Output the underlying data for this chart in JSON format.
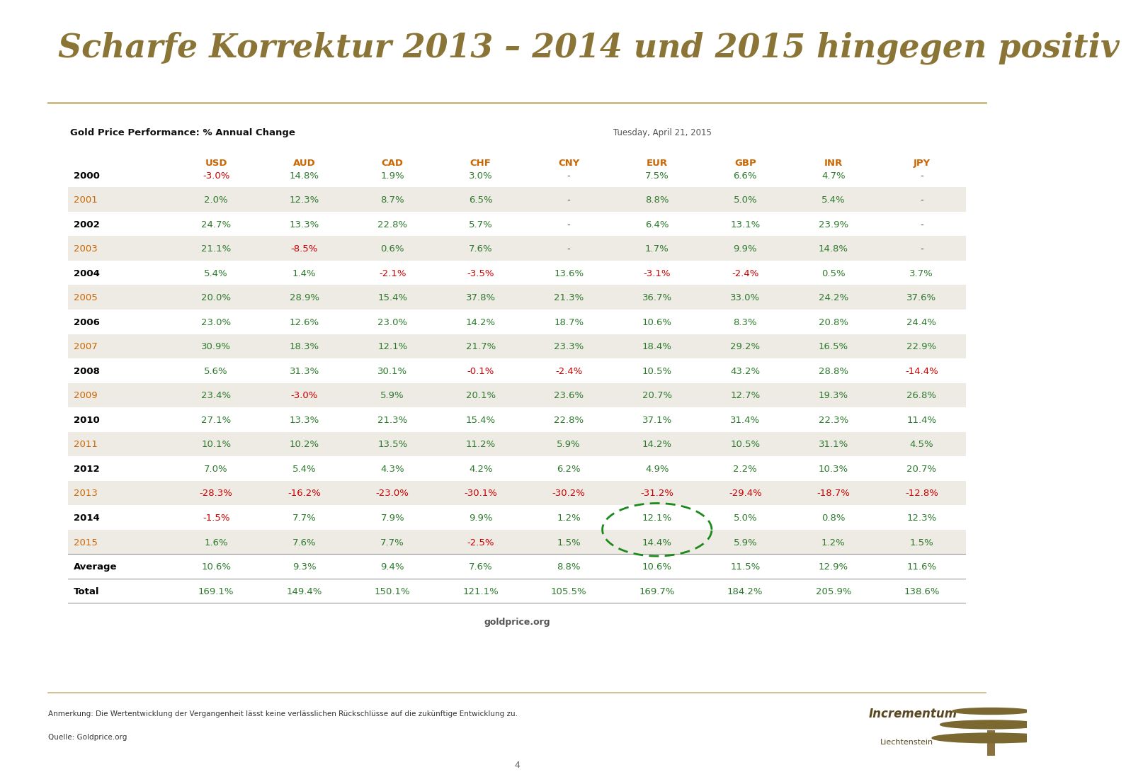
{
  "title": "Scharfe Korrektur 2013 – 2014 und 2015 hingegen positiv",
  "title_color": "#8B7536",
  "subtitle": "Gold Price Performance: % Annual Change",
  "date_label": "Tuesday, April 21, 2015",
  "source_label": "goldprice.org",
  "footer_line1": "Anmerkung: Die Wertentwicklung der Vergangenheit lässt keine verlässlichen Rückschlüsse auf die zukünftige Entwicklung zu.",
  "footer_line2": "Quelle: Goldprice.org",
  "page_number": "4",
  "columns": [
    "",
    "USD",
    "AUD",
    "CAD",
    "CHF",
    "CNY",
    "EUR",
    "GBP",
    "INR",
    "JPY"
  ],
  "col_colors": [
    "#000000",
    "#CC6600",
    "#CC6600",
    "#CC6600",
    "#CC6600",
    "#CC6600",
    "#CC6600",
    "#CC6600",
    "#CC6600",
    "#CC6600"
  ],
  "rows": [
    {
      "year": "2000",
      "year_bold": true,
      "year_color": "#000000",
      "shade": false,
      "values": [
        "-3.0%",
        "14.8%",
        "1.9%",
        "3.0%",
        "-",
        "7.5%",
        "6.6%",
        "4.7%",
        "-"
      ]
    },
    {
      "year": "2001",
      "year_bold": false,
      "year_color": "#CC6600",
      "shade": true,
      "values": [
        "2.0%",
        "12.3%",
        "8.7%",
        "6.5%",
        "-",
        "8.8%",
        "5.0%",
        "5.4%",
        "-"
      ]
    },
    {
      "year": "2002",
      "year_bold": true,
      "year_color": "#000000",
      "shade": false,
      "values": [
        "24.7%",
        "13.3%",
        "22.8%",
        "5.7%",
        "-",
        "6.4%",
        "13.1%",
        "23.9%",
        "-"
      ]
    },
    {
      "year": "2003",
      "year_bold": false,
      "year_color": "#CC6600",
      "shade": true,
      "values": [
        "21.1%",
        "-8.5%",
        "0.6%",
        "7.6%",
        "-",
        "1.7%",
        "9.9%",
        "14.8%",
        "-"
      ]
    },
    {
      "year": "2004",
      "year_bold": true,
      "year_color": "#000000",
      "shade": false,
      "values": [
        "5.4%",
        "1.4%",
        "-2.1%",
        "-3.5%",
        "13.6%",
        "-3.1%",
        "-2.4%",
        "0.5%",
        "3.7%"
      ]
    },
    {
      "year": "2005",
      "year_bold": false,
      "year_color": "#CC6600",
      "shade": true,
      "values": [
        "20.0%",
        "28.9%",
        "15.4%",
        "37.8%",
        "21.3%",
        "36.7%",
        "33.0%",
        "24.2%",
        "37.6%"
      ]
    },
    {
      "year": "2006",
      "year_bold": true,
      "year_color": "#000000",
      "shade": false,
      "values": [
        "23.0%",
        "12.6%",
        "23.0%",
        "14.2%",
        "18.7%",
        "10.6%",
        "8.3%",
        "20.8%",
        "24.4%"
      ]
    },
    {
      "year": "2007",
      "year_bold": false,
      "year_color": "#CC6600",
      "shade": true,
      "values": [
        "30.9%",
        "18.3%",
        "12.1%",
        "21.7%",
        "23.3%",
        "18.4%",
        "29.2%",
        "16.5%",
        "22.9%"
      ]
    },
    {
      "year": "2008",
      "year_bold": true,
      "year_color": "#000000",
      "shade": false,
      "values": [
        "5.6%",
        "31.3%",
        "30.1%",
        "-0.1%",
        "-2.4%",
        "10.5%",
        "43.2%",
        "28.8%",
        "-14.4%"
      ]
    },
    {
      "year": "2009",
      "year_bold": false,
      "year_color": "#CC6600",
      "shade": true,
      "values": [
        "23.4%",
        "-3.0%",
        "5.9%",
        "20.1%",
        "23.6%",
        "20.7%",
        "12.7%",
        "19.3%",
        "26.8%"
      ]
    },
    {
      "year": "2010",
      "year_bold": true,
      "year_color": "#000000",
      "shade": false,
      "values": [
        "27.1%",
        "13.3%",
        "21.3%",
        "15.4%",
        "22.8%",
        "37.1%",
        "31.4%",
        "22.3%",
        "11.4%"
      ]
    },
    {
      "year": "2011",
      "year_bold": false,
      "year_color": "#CC6600",
      "shade": true,
      "values": [
        "10.1%",
        "10.2%",
        "13.5%",
        "11.2%",
        "5.9%",
        "14.2%",
        "10.5%",
        "31.1%",
        "4.5%"
      ]
    },
    {
      "year": "2012",
      "year_bold": true,
      "year_color": "#000000",
      "shade": false,
      "values": [
        "7.0%",
        "5.4%",
        "4.3%",
        "4.2%",
        "6.2%",
        "4.9%",
        "2.2%",
        "10.3%",
        "20.7%"
      ]
    },
    {
      "year": "2013",
      "year_bold": false,
      "year_color": "#CC6600",
      "shade": true,
      "values": [
        "-28.3%",
        "-16.2%",
        "-23.0%",
        "-30.1%",
        "-30.2%",
        "-31.2%",
        "-29.4%",
        "-18.7%",
        "-12.8%"
      ]
    },
    {
      "year": "2014",
      "year_bold": true,
      "year_color": "#000000",
      "shade": false,
      "values": [
        "-1.5%",
        "7.7%",
        "7.9%",
        "9.9%",
        "1.2%",
        "12.1%",
        "5.0%",
        "0.8%",
        "12.3%"
      ]
    },
    {
      "year": "2015",
      "year_bold": false,
      "year_color": "#CC6600",
      "shade": true,
      "values": [
        "1.6%",
        "7.6%",
        "7.7%",
        "-2.5%",
        "1.5%",
        "14.4%",
        "5.9%",
        "1.2%",
        "1.5%"
      ]
    },
    {
      "year": "Average",
      "year_bold": true,
      "year_color": "#000000",
      "shade": false,
      "values": [
        "10.6%",
        "9.3%",
        "9.4%",
        "7.6%",
        "8.8%",
        "10.6%",
        "11.5%",
        "12.9%",
        "11.6%"
      ]
    },
    {
      "year": "Total",
      "year_bold": true,
      "year_color": "#000000",
      "shade": false,
      "values": [
        "169.1%",
        "149.4%",
        "150.1%",
        "121.1%",
        "105.5%",
        "169.7%",
        "184.2%",
        "205.9%",
        "138.6%"
      ]
    }
  ],
  "bg_color": "#FFFFFF",
  "shade_color": "#EEEAE4",
  "green_color": "#2D7A2D",
  "red_color": "#CC0000",
  "neutral_color": "#4A4A4A",
  "line_color": "#999999",
  "title_line_color": "#C8B882"
}
